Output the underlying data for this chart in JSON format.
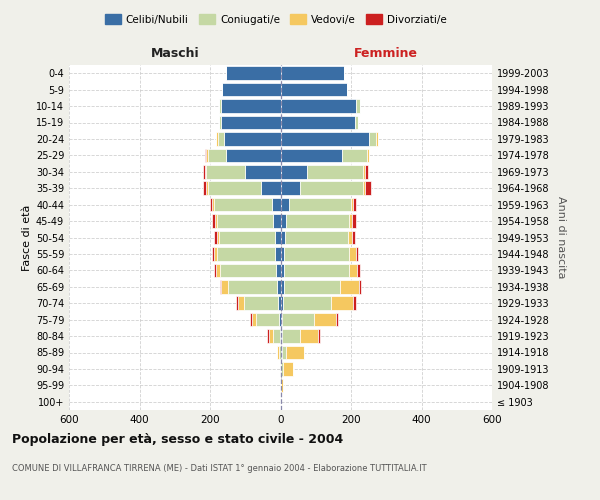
{
  "age_groups": [
    "100+",
    "95-99",
    "90-94",
    "85-89",
    "80-84",
    "75-79",
    "70-74",
    "65-69",
    "60-64",
    "55-59",
    "50-54",
    "45-49",
    "40-44",
    "35-39",
    "30-34",
    "25-29",
    "20-24",
    "15-19",
    "10-14",
    "5-9",
    "0-4"
  ],
  "birth_years": [
    "≤ 1903",
    "1904-1908",
    "1909-1913",
    "1914-1918",
    "1919-1923",
    "1924-1928",
    "1929-1933",
    "1934-1938",
    "1939-1943",
    "1944-1948",
    "1949-1953",
    "1954-1958",
    "1959-1963",
    "1964-1968",
    "1969-1973",
    "1974-1978",
    "1979-1983",
    "1984-1988",
    "1989-1993",
    "1994-1998",
    "1999-2003"
  ],
  "colors": {
    "celibi": "#3a6ea5",
    "coniugati": "#c5d8a4",
    "vedovi": "#f5c860",
    "divorziati": "#cc2020"
  },
  "maschi": {
    "celibi": [
      0,
      0,
      0,
      0,
      2,
      5,
      8,
      10,
      12,
      15,
      15,
      20,
      25,
      55,
      100,
      155,
      160,
      170,
      170,
      165,
      155
    ],
    "coniugati": [
      0,
      0,
      2,
      5,
      20,
      65,
      95,
      140,
      160,
      165,
      160,
      160,
      165,
      150,
      110,
      50,
      18,
      5,
      5,
      0,
      0
    ],
    "vedovi": [
      0,
      0,
      0,
      5,
      10,
      12,
      18,
      18,
      12,
      8,
      5,
      5,
      5,
      5,
      5,
      5,
      5,
      0,
      0,
      0,
      0
    ],
    "divorziati": [
      0,
      0,
      0,
      0,
      5,
      5,
      5,
      5,
      5,
      5,
      8,
      8,
      5,
      10,
      5,
      5,
      0,
      0,
      0,
      0,
      0
    ]
  },
  "femmine": {
    "celibi": [
      0,
      0,
      2,
      5,
      5,
      5,
      8,
      10,
      10,
      10,
      12,
      15,
      25,
      55,
      75,
      175,
      250,
      210,
      215,
      190,
      180
    ],
    "coniugati": [
      0,
      2,
      5,
      10,
      50,
      90,
      135,
      160,
      185,
      185,
      180,
      180,
      175,
      180,
      160,
      70,
      22,
      10,
      10,
      0,
      0
    ],
    "vedovi": [
      0,
      5,
      28,
      52,
      52,
      62,
      62,
      52,
      22,
      18,
      12,
      8,
      5,
      5,
      5,
      5,
      5,
      0,
      0,
      0,
      0
    ],
    "divorziati": [
      0,
      0,
      0,
      0,
      5,
      5,
      8,
      5,
      8,
      8,
      8,
      12,
      8,
      18,
      8,
      0,
      0,
      0,
      0,
      0,
      0
    ]
  },
  "title": "Popolazione per età, sesso e stato civile - 2004",
  "subtitle": "COMUNE DI VILLAFRANCA TIRRENA (ME) - Dati ISTAT 1° gennaio 2004 - Elaborazione TUTTITALIA.IT",
  "xlabel_left": "Maschi",
  "xlabel_right": "Femmine",
  "ylabel": "Fasce di età",
  "ylabel_right": "Anni di nascita",
  "xlim": 600,
  "legend_labels": [
    "Celibi/Nubili",
    "Coniugati/e",
    "Vedovi/e",
    "Divorziati/e"
  ],
  "bg_color": "#f0f0ea",
  "plot_bg": "#ffffff"
}
